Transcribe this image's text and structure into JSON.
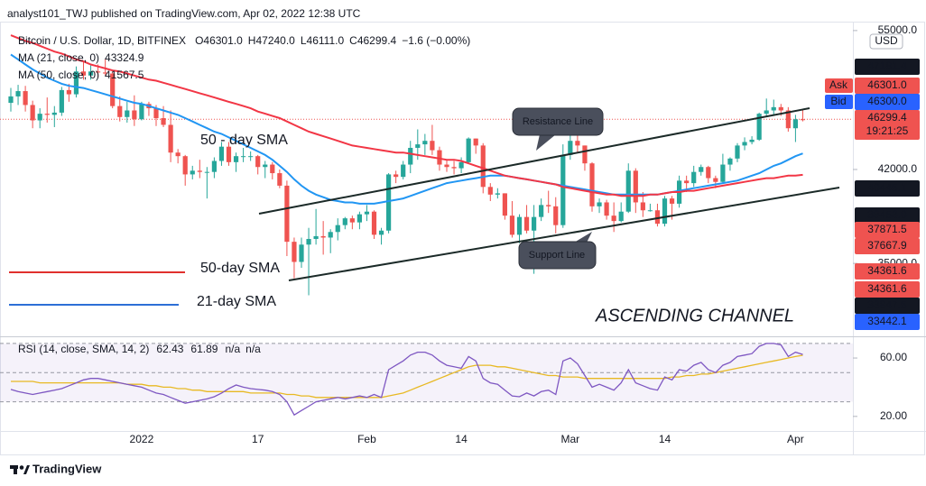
{
  "header": {
    "publisher": "analyst101_TWJ published on TradingView.com, Apr 02, 2022 12:38 UTC"
  },
  "chart_data": [
    {
      "type": "candlestick",
      "title": "Bitcoin / U.S. Dollar, 1D, BITFINEX",
      "ohlc_legend": [
        {
          "key": "O",
          "value": "46301.0"
        },
        {
          "key": "H",
          "value": "47240.0"
        },
        {
          "key": "L",
          "value": "46111.0"
        },
        {
          "key": "C",
          "value": "46299.4"
        }
      ],
      "change": "−1.6 (−0.00%)",
      "up_color": "#26a69a",
      "down_color": "#ef5350",
      "categories": [
        null,
        null,
        null,
        null,
        null,
        null,
        null,
        null,
        null,
        null,
        null,
        null,
        null,
        null,
        null,
        null,
        null,
        null,
        "2022",
        null,
        null,
        null,
        null,
        null,
        null,
        null,
        null,
        null,
        null,
        null,
        null,
        null,
        null,
        null,
        "17",
        null,
        null,
        null,
        null,
        null,
        null,
        null,
        null,
        null,
        null,
        null,
        null,
        null,
        null,
        "Feb",
        null,
        null,
        null,
        null,
        null,
        null,
        null,
        null,
        null,
        null,
        null,
        null,
        "14",
        null,
        null,
        null,
        null,
        null,
        null,
        null,
        null,
        null,
        null,
        null,
        null,
        null,
        null,
        "Mar",
        null,
        null,
        null,
        null,
        null,
        null,
        null,
        null,
        null,
        null,
        null,
        null,
        "14",
        null,
        null,
        null,
        null,
        null,
        null,
        null,
        null,
        null,
        null,
        null,
        null,
        null,
        null,
        null,
        null,
        null,
        "Apr",
        null
      ],
      "open": [
        47800,
        48400,
        48900,
        47600,
        46200,
        46800,
        46700,
        46900,
        49000,
        48600,
        50800,
        50400,
        50800,
        50700,
        50600,
        47500,
        46500,
        47100,
        46300,
        47700,
        47300,
        46400,
        45800,
        43400,
        43100,
        41600,
        41900,
        41800,
        41800,
        42700,
        43900,
        42600,
        43100,
        43100,
        43100,
        42200,
        42400,
        41700,
        40700,
        36500,
        35100,
        36300,
        36700,
        36900,
        36800,
        37200,
        37700,
        38200,
        37900,
        38500,
        38700,
        37000,
        37300,
        41600,
        41400,
        42400,
        43800,
        44100,
        44400,
        43600,
        42400,
        42200,
        42100,
        42600,
        44600,
        44000,
        40600,
        40000,
        40100,
        38400,
        37000,
        38300,
        37300,
        38300,
        39200,
        39100,
        37700,
        43200,
        44400,
        44000,
        42500,
        39100,
        39400,
        38400,
        38000,
        38700,
        41900,
        39400,
        38800,
        38800,
        37800,
        39700,
        39300,
        41100,
        40900,
        41800,
        42200,
        41300,
        41000,
        42400,
        42900,
        44000,
        44300,
        44500,
        46800,
        47100,
        47400,
        47100,
        45500,
        46301
      ],
      "high": [
        49200,
        49500,
        49400,
        48000,
        47300,
        48300,
        47500,
        49300,
        49600,
        51300,
        51800,
        51400,
        51500,
        52000,
        50700,
        48400,
        47900,
        48500,
        47900,
        47900,
        47600,
        47500,
        47100,
        43700,
        43200,
        42300,
        42800,
        42200,
        43000,
        44300,
        44300,
        43400,
        43800,
        43500,
        43200,
        42700,
        42600,
        42000,
        41100,
        36800,
        36800,
        37500,
        38900,
        38000,
        37400,
        38200,
        38300,
        38400,
        38700,
        39200,
        38800,
        37500,
        41700,
        41900,
        42700,
        44400,
        45400,
        45000,
        45800,
        43900,
        42800,
        42700,
        43000,
        44700,
        44600,
        44200,
        40900,
        40500,
        40100,
        39500,
        38500,
        39200,
        39200,
        39700,
        40300,
        39800,
        44100,
        44900,
        45400,
        44000,
        42600,
        39700,
        39600,
        39400,
        39400,
        42500,
        42100,
        40200,
        39300,
        39300,
        39900,
        39900,
        41500,
        41500,
        42300,
        42400,
        42300,
        41500,
        43300,
        43000,
        44200,
        44700,
        44800,
        46900,
        48200,
        48100,
        47700,
        47400,
        46700,
        47240
      ],
      "low": [
        47000,
        47600,
        47000,
        45500,
        45500,
        46000,
        45600,
        46600,
        47900,
        48300,
        50000,
        50000,
        50200,
        50400,
        47300,
        46100,
        46000,
        45700,
        46200,
        46600,
        45700,
        45600,
        42600,
        42500,
        40700,
        41200,
        41300,
        39700,
        41300,
        42300,
        42300,
        41800,
        42600,
        42700,
        41600,
        41300,
        41200,
        40500,
        35500,
        34000,
        34700,
        32900,
        36300,
        35600,
        35700,
        36600,
        37400,
        37400,
        37400,
        38000,
        36700,
        36300,
        37100,
        40900,
        41200,
        41700,
        42800,
        43200,
        43200,
        41900,
        41800,
        41600,
        41700,
        42500,
        43300,
        40100,
        39500,
        39700,
        38100,
        36800,
        36400,
        37100,
        34300,
        38000,
        38600,
        37100,
        37500,
        42800,
        43400,
        41900,
        38700,
        38600,
        38100,
        37200,
        37900,
        38600,
        38600,
        38300,
        38700,
        37600,
        37600,
        38100,
        39000,
        40200,
        40600,
        41500,
        40900,
        40500,
        40900,
        41900,
        42600,
        43600,
        44100,
        44400,
        46600,
        46600,
        46600,
        45200,
        44300,
        46111
      ],
      "close": [
        48400,
        48900,
        47600,
        46200,
        46800,
        46700,
        46900,
        49000,
        48600,
        50800,
        50400,
        50800,
        50700,
        50600,
        47500,
        46500,
        47100,
        46300,
        47700,
        47300,
        46400,
        45800,
        43400,
        43100,
        41600,
        41900,
        41800,
        41800,
        42700,
        43900,
        42600,
        43100,
        43100,
        43100,
        42200,
        42400,
        41700,
        40700,
        36500,
        35100,
        36300,
        36700,
        36900,
        36800,
        37200,
        37700,
        38200,
        37900,
        38500,
        38700,
        37000,
        37300,
        41600,
        41400,
        42400,
        43800,
        44100,
        44400,
        43600,
        42400,
        42200,
        42100,
        42600,
        44600,
        44000,
        40600,
        40000,
        40100,
        38400,
        37000,
        38300,
        37300,
        38300,
        39200,
        39100,
        37700,
        43200,
        44400,
        44000,
        42500,
        39100,
        39400,
        38400,
        38000,
        38700,
        41900,
        39400,
        38800,
        38800,
        37800,
        39700,
        39300,
        41100,
        40900,
        41800,
        42200,
        41300,
        41000,
        42400,
        42900,
        44000,
        44300,
        44500,
        46800,
        47100,
        47400,
        47100,
        45500,
        46301,
        46299.4
      ],
      "series": [
        {
          "name": "MA (21, close, 0)",
          "color": "#2196f3",
          "value_label": "43324.9",
          "values": [
            52500,
            52000,
            51500,
            51000,
            50600,
            50200,
            49900,
            49600,
            49400,
            49300,
            49200,
            49000,
            48800,
            48600,
            48400,
            48200,
            48000,
            47800,
            47700,
            47500,
            47300,
            47100,
            46900,
            46700,
            46400,
            46100,
            45800,
            45500,
            45200,
            45000,
            44700,
            44400,
            44100,
            43800,
            43500,
            43200,
            42800,
            42300,
            41800,
            41200,
            40700,
            40300,
            40000,
            39800,
            39600,
            39500,
            39400,
            39400,
            39300,
            39300,
            39300,
            39400,
            39500,
            39600,
            39700,
            39900,
            40100,
            40300,
            40500,
            40700,
            40900,
            41000,
            41100,
            41200,
            41300,
            41400,
            41500,
            41500,
            41500,
            41400,
            41300,
            41200,
            41100,
            41000,
            40900,
            40800,
            40700,
            40600,
            40500,
            40400,
            40300,
            40200,
            40100,
            40000,
            40000,
            40000,
            40000,
            40000,
            40000,
            40000,
            40100,
            40200,
            40300,
            40400,
            40500,
            40600,
            40700,
            40800,
            40900,
            41000,
            41100,
            41300,
            41500,
            41700,
            42000,
            42300,
            42500,
            42800,
            43100,
            43324.9
          ]
        },
        {
          "name": "MA (50, close, 0)",
          "color": "#f23645",
          "value_label": "41567.5",
          "values": [
            54500,
            54200,
            53900,
            53700,
            53400,
            53100,
            52800,
            52600,
            52300,
            52000,
            51800,
            51500,
            51300,
            51100,
            50900,
            50800,
            50600,
            50400,
            50200,
            50000,
            49900,
            49700,
            49500,
            49300,
            49100,
            48900,
            48700,
            48500,
            48300,
            48100,
            47900,
            47700,
            47500,
            47300,
            47000,
            46800,
            46600,
            46400,
            46100,
            45800,
            45500,
            45200,
            45000,
            44800,
            44600,
            44400,
            44200,
            44000,
            43900,
            43800,
            43700,
            43600,
            43500,
            43400,
            43400,
            43300,
            43200,
            43100,
            43000,
            42900,
            42800,
            42800,
            42700,
            42500,
            42300,
            42100,
            41900,
            41700,
            41500,
            41400,
            41300,
            41200,
            41100,
            41000,
            40900,
            40800,
            40600,
            40500,
            40400,
            40300,
            40200,
            40100,
            40000,
            40000,
            39900,
            39900,
            39900,
            39900,
            40000,
            40000,
            40100,
            40200,
            40200,
            40300,
            40300,
            40400,
            40500,
            40600,
            40700,
            40800,
            40900,
            41000,
            41100,
            41200,
            41300,
            41300,
            41400,
            41500,
            41500,
            41567.5
          ]
        }
      ],
      "log_scale": true,
      "grid": false,
      "ylim": [
        30540,
        55960
      ],
      "yticks": [
        {
          "value": 35000,
          "label": "35000.0"
        },
        {
          "value": 42000,
          "label": "42000.0"
        },
        {
          "value": 55000,
          "label": "55000.0"
        }
      ],
      "unit": "USD",
      "ask": {
        "label": "Ask",
        "value": "46301.0",
        "color": "#ef5350"
      },
      "bid": {
        "label": "Bid",
        "value": "46300.0",
        "color": "#2962ff"
      },
      "last_price": {
        "value": "46299.4",
        "countdown": "19:21:25",
        "color": "#ef5350"
      },
      "price_labels": [
        {
          "text": "47181.4",
          "color": "#131722"
        },
        {
          "text": "40445.1",
          "color": "#131722"
        },
        {
          "text": "38453.0",
          "color": "#131722"
        },
        {
          "text": "37871.5",
          "color": "#ef5350"
        },
        {
          "text": "37667.9",
          "color": "#ef5350"
        },
        {
          "text": "34361.6",
          "color": "#ef5350"
        },
        {
          "text": "34361.6",
          "color": "#ef5350"
        },
        {
          "text": "33847.5",
          "color": "#131722"
        },
        {
          "text": "33442.1",
          "color": "#2962ff"
        }
      ],
      "annotations": [
        {
          "text": "50 - day SMA",
          "color": "#e0302d"
        },
        {
          "text": "50-day SMA",
          "color": "#e0302d"
        },
        {
          "text": "21-day SMA",
          "color": "#2d6fd6"
        },
        {
          "text": "Resistance Line",
          "color": "#ffffff"
        },
        {
          "text": "Support Line",
          "color": "#ffffff"
        },
        {
          "text": "ASCENDING CHANNEL",
          "color": "#131722"
        }
      ]
    },
    {
      "type": "line",
      "title": "RSI (14, close, SMA, 14, 2)",
      "na_labels": [
        "n/a",
        "n/a"
      ],
      "series": [
        {
          "color": "#7e57c2",
          "value_label": "62.43",
          "values": [
            38.5,
            37,
            36,
            35,
            36,
            37,
            38,
            39,
            41,
            43,
            45,
            46,
            46,
            45,
            44,
            43,
            42,
            41,
            40,
            38,
            36,
            35,
            33,
            31,
            29,
            30,
            31,
            32,
            33.5,
            36,
            39,
            41.5,
            40,
            39,
            38.5,
            38,
            37,
            35,
            30,
            21,
            24,
            27,
            30,
            31,
            32,
            33,
            32,
            33,
            34,
            33,
            35,
            33,
            52,
            55,
            58,
            62,
            64,
            64,
            62,
            58,
            55,
            54,
            53,
            61,
            58,
            46,
            43,
            42,
            38,
            34,
            33.5,
            36,
            34,
            37,
            38,
            35,
            58,
            60,
            56,
            48,
            40,
            42,
            40,
            38,
            43,
            52,
            43,
            41,
            39,
            38,
            47,
            45,
            52,
            51,
            55,
            57,
            52,
            50,
            55,
            57,
            61,
            62,
            63,
            68,
            70,
            70,
            69,
            61,
            64,
            62.43
          ]
        },
        {
          "color": "#e8b923",
          "value_label": "61.89",
          "values": [
            44,
            44,
            44,
            44,
            43,
            43,
            43,
            43,
            43,
            43,
            43,
            43,
            43,
            43,
            43,
            43,
            42,
            42,
            42,
            41,
            41,
            40,
            40,
            39,
            39,
            38,
            38,
            37,
            37,
            37,
            37,
            37,
            37,
            36,
            36,
            36,
            36,
            36,
            35,
            35,
            34,
            34,
            33,
            33,
            33,
            33,
            33,
            33,
            33,
            33,
            33,
            33,
            34,
            35,
            36,
            38,
            40,
            42,
            44,
            46,
            48,
            50,
            52,
            54,
            55,
            55,
            55,
            54,
            54,
            53,
            52,
            51,
            50,
            49,
            48,
            48,
            47,
            47,
            47,
            46,
            46,
            46,
            46,
            46,
            46,
            46,
            46,
            46,
            46,
            46,
            46,
            47,
            47,
            48,
            48,
            49,
            49,
            50,
            51,
            52,
            53,
            54,
            55,
            56,
            57,
            58,
            59,
            60,
            61,
            61.89
          ]
        }
      ],
      "levels": [
        30,
        50,
        70
      ],
      "ylim": [
        10,
        73
      ],
      "yticks": [
        {
          "value": 20,
          "label": "20.00"
        },
        {
          "value": 60,
          "label": "60.00"
        }
      ]
    }
  ],
  "footer": {
    "brand": "TradingView"
  }
}
